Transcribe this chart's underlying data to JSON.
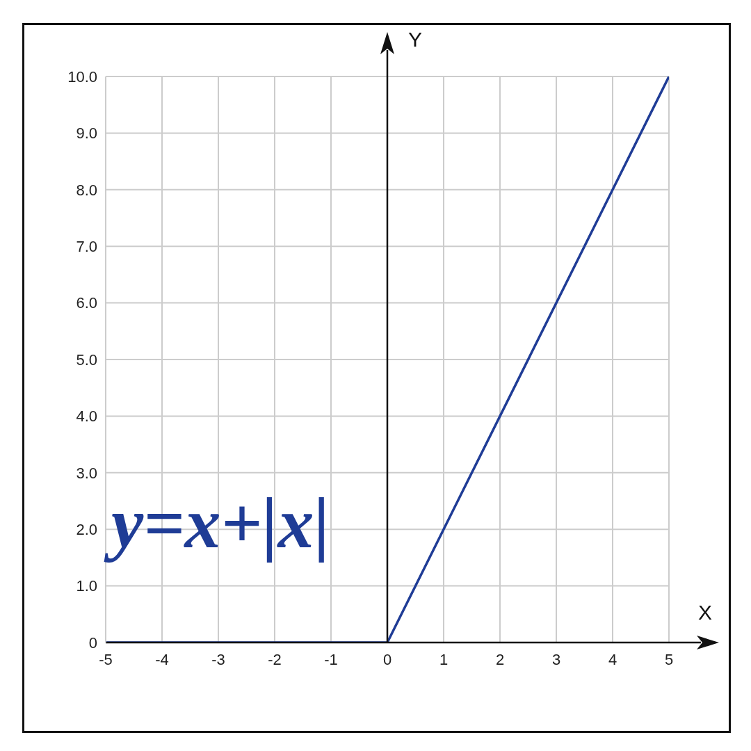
{
  "chart_data": {
    "type": "line",
    "xlabel": "X",
    "ylabel": "Y",
    "annotations": [
      "y=x+|x|"
    ],
    "x": [
      -5,
      0,
      5
    ],
    "series": [
      {
        "color": "#1f3c96",
        "values": [
          0,
          0,
          10
        ]
      }
    ],
    "xlim": [
      -5,
      5
    ],
    "xticks": [
      -5,
      -4,
      -3,
      -2,
      -1,
      0,
      1,
      2,
      3,
      4,
      5
    ],
    "ylim": [
      0,
      10
    ],
    "yticks": [
      0,
      {
        "value": 1,
        "label": "1.0"
      },
      {
        "value": 2,
        "label": "2.0"
      },
      {
        "value": 3,
        "label": "3.0"
      },
      {
        "value": 4,
        "label": "4.0"
      },
      {
        "value": 5,
        "label": "5.0"
      },
      {
        "value": 6,
        "label": "6.0"
      },
      {
        "value": 7,
        "label": "7.0"
      },
      {
        "value": 8,
        "label": "8.0"
      },
      {
        "value": 9,
        "label": "9.0"
      },
      {
        "value": 10,
        "label": "10.0"
      }
    ],
    "grid": true,
    "legend": false
  }
}
